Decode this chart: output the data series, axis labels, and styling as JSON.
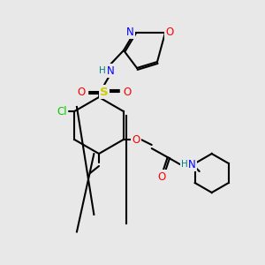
{
  "bg_color": "#e8e8e8",
  "bond_color": "#000000",
  "bond_width": 1.5,
  "atom_label_colors": {
    "N": "#0000ff",
    "O": "#ff0000",
    "S": "#cccc00",
    "Cl": "#00cc00",
    "H_label": "#008080",
    "C": "#000000"
  },
  "font_size": 8.5
}
